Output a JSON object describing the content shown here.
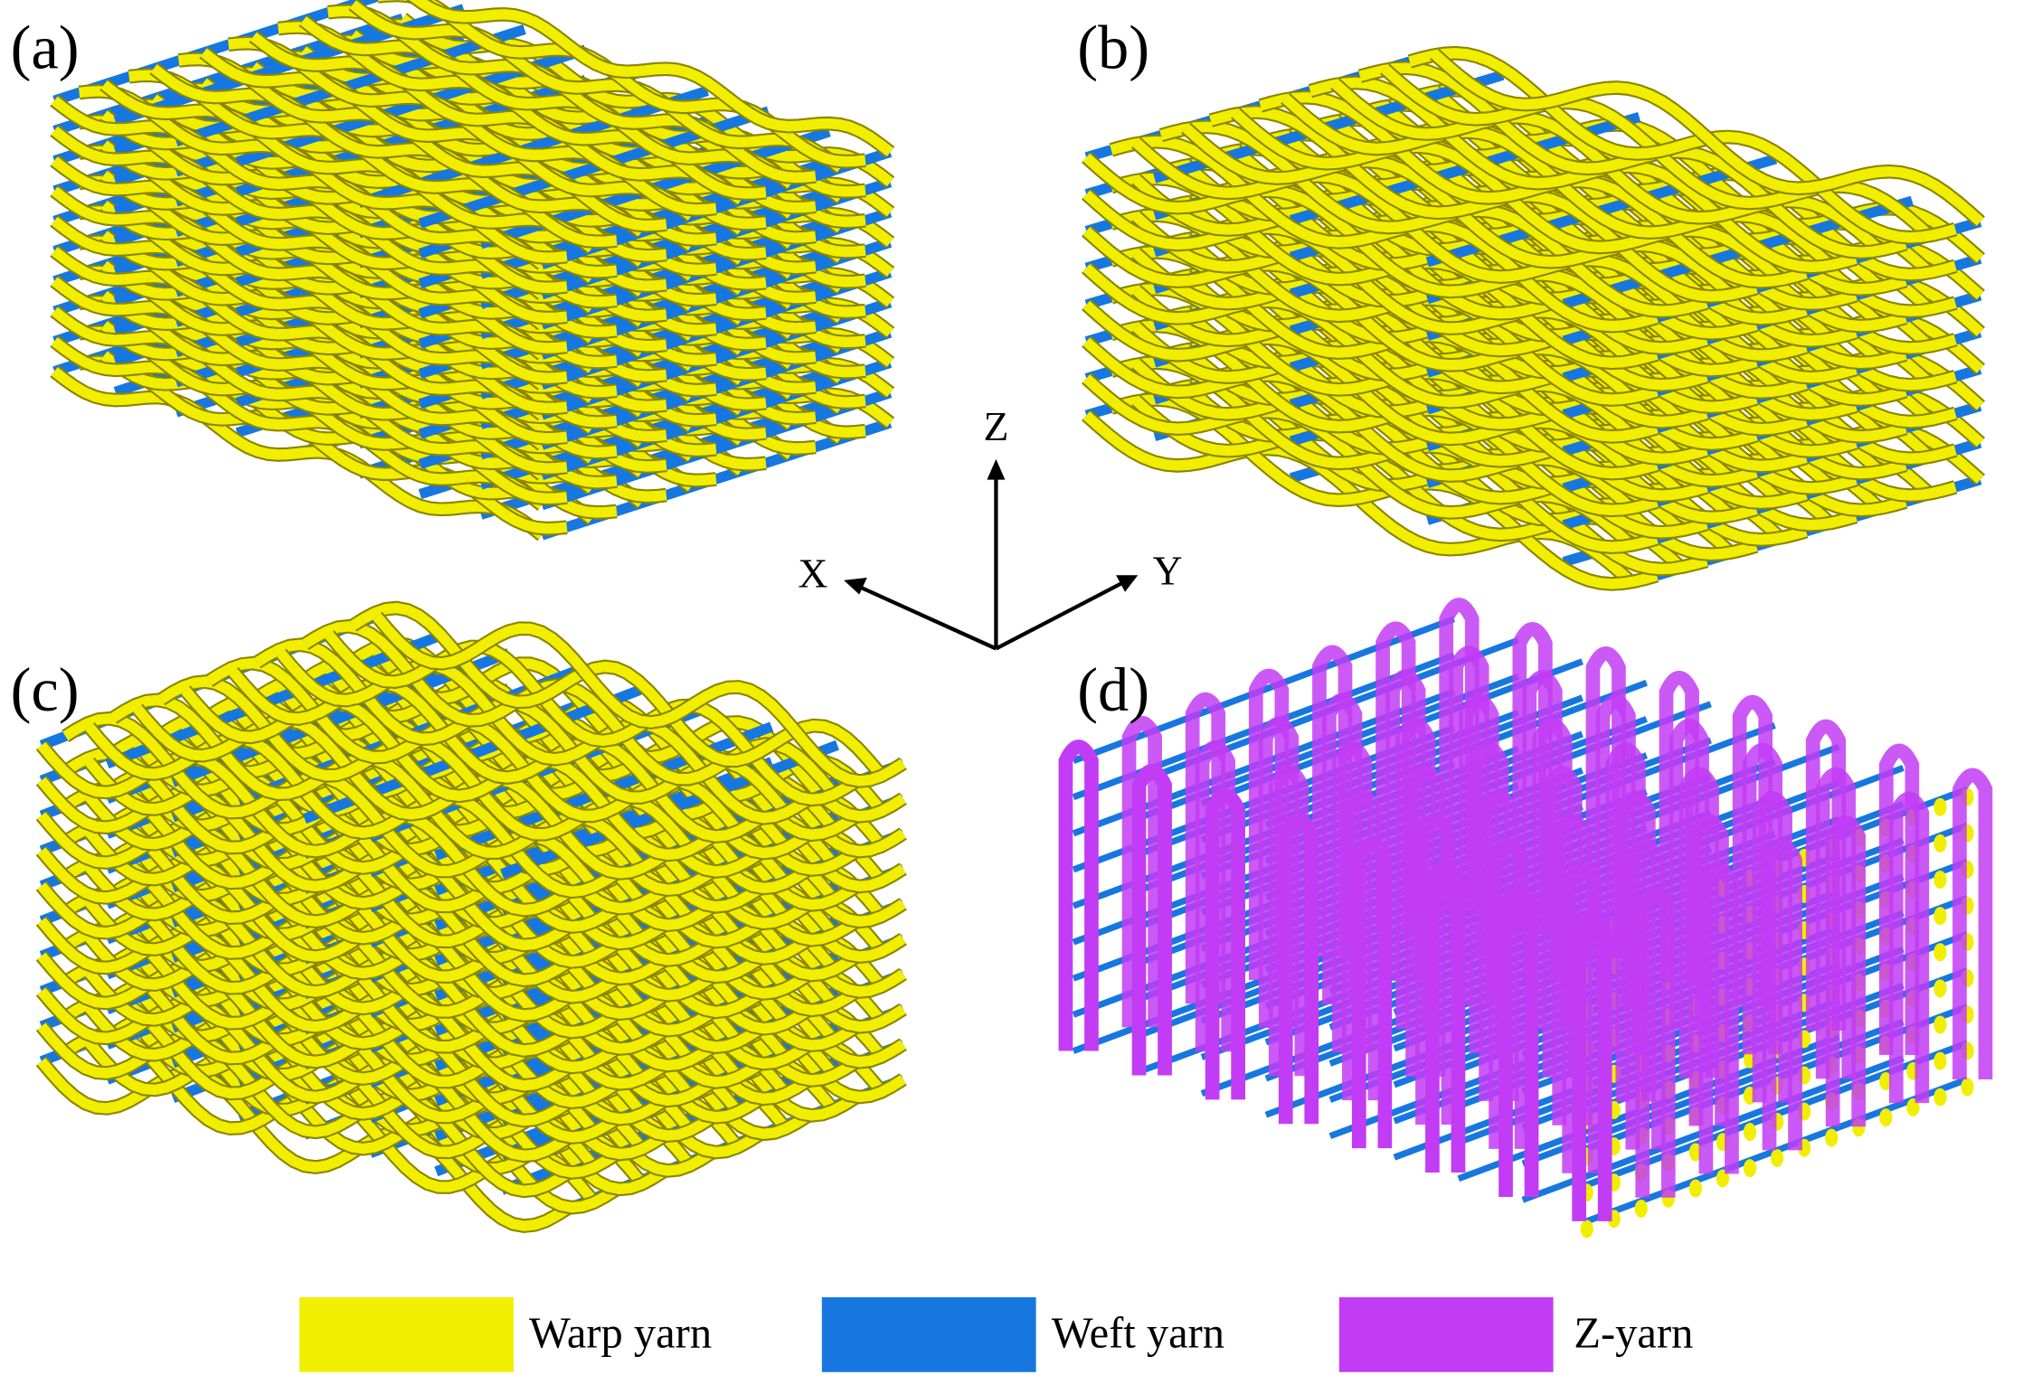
{
  "panels": [
    {
      "label": "(a)"
    },
    {
      "label": "(b)"
    },
    {
      "label": "(c)"
    },
    {
      "label": "(d)"
    }
  ],
  "axes": {
    "z": "Z",
    "x": "X",
    "y": "Y"
  },
  "legend": [
    {
      "label": "Warp yarn",
      "color": "#f2ee00"
    },
    {
      "label": "Weft yarn",
      "color": "#1677e0"
    },
    {
      "label": "Z-yarn",
      "color": "#c23cf5"
    }
  ]
}
